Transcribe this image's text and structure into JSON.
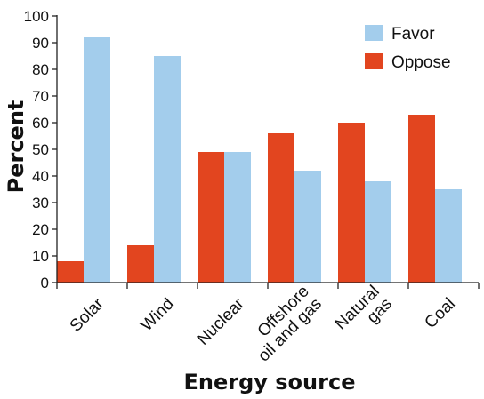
{
  "chart_data": {
    "type": "bar",
    "categories": [
      [
        "Solar"
      ],
      [
        "Wind"
      ],
      [
        "Nuclear"
      ],
      [
        "Offshore",
        "oil and gas"
      ],
      [
        "Natural",
        "gas"
      ],
      [
        "Coal"
      ]
    ],
    "series": [
      {
        "name": "Oppose",
        "color": "#e2451f",
        "values": [
          8,
          14,
          49,
          56,
          60,
          63
        ]
      },
      {
        "name": "Favor",
        "color": "#a3cdec",
        "values": [
          92,
          85,
          49,
          42,
          38,
          35
        ]
      }
    ],
    "legend_order": [
      "Favor",
      "Oppose"
    ],
    "legend_position": "top-right",
    "xlabel": "Energy source",
    "ylabel": "Percent",
    "ylim": [
      0,
      100
    ],
    "yticks": [
      0,
      10,
      20,
      30,
      40,
      50,
      60,
      70,
      80,
      90,
      100
    ],
    "grid": false
  }
}
